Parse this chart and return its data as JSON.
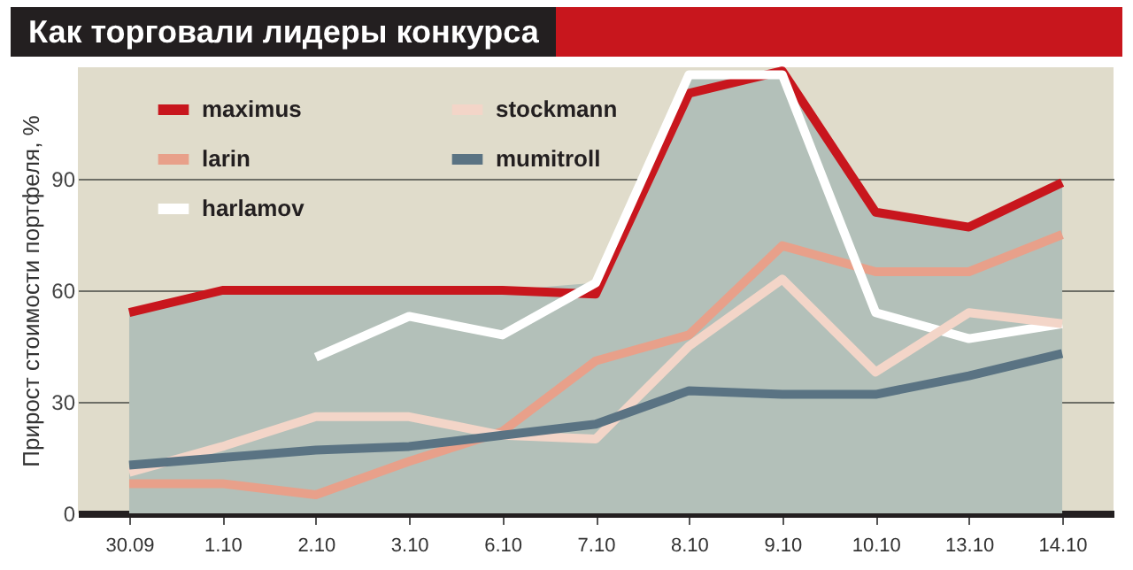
{
  "chart_data": {
    "type": "line",
    "title": "Как торговали лидеры конкурса",
    "ylabel": "Прирост стоимости портфеля, %",
    "categories": [
      "30.09",
      "1.10",
      "2.10",
      "3.10",
      "6.10",
      "7.10",
      "8.10",
      "9.10",
      "10.10",
      "13.10",
      "14.10"
    ],
    "series": [
      {
        "type": "area",
        "color": "#b3c0b9",
        "values": [
          54,
          60,
          60,
          60,
          60,
          62,
          118,
          119,
          81,
          77,
          89
        ]
      },
      {
        "name": "maximus",
        "color": "#c8161d",
        "values": [
          54,
          60,
          60,
          60,
          60,
          59,
          113,
          119,
          81,
          77,
          89
        ]
      },
      {
        "name": "larin",
        "color": "#e8a08a",
        "values": [
          8,
          8,
          5,
          14,
          22,
          41,
          48,
          72,
          65,
          65,
          75
        ]
      },
      {
        "name": "harlamov",
        "color": "#ffffff",
        "values": [
          null,
          null,
          42,
          53,
          48,
          62,
          118,
          118,
          54,
          47,
          51
        ]
      },
      {
        "name": "stockmann",
        "color": "#f3d5c8",
        "values": [
          11,
          18,
          26,
          26,
          21,
          20,
          45,
          63,
          38,
          54,
          51
        ]
      },
      {
        "name": "mumitroll",
        "color": "#5a7383",
        "values": [
          13,
          15,
          17,
          18,
          21,
          24,
          33,
          32,
          32,
          37,
          43
        ]
      }
    ],
    "ylim": [
      0,
      120
    ],
    "yticks": [
      0,
      30,
      60,
      90
    ],
    "grid": "y",
    "legend": "top left"
  }
}
